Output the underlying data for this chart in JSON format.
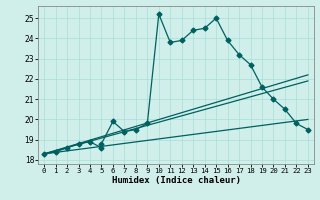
{
  "xlabel": "Humidex (Indice chaleur)",
  "xlim": [
    -0.5,
    23.5
  ],
  "ylim": [
    17.8,
    25.6
  ],
  "yticks": [
    18,
    19,
    20,
    21,
    22,
    23,
    24,
    25
  ],
  "xticks": [
    0,
    1,
    2,
    3,
    4,
    5,
    6,
    7,
    8,
    9,
    10,
    11,
    12,
    13,
    14,
    15,
    16,
    17,
    18,
    19,
    20,
    21,
    22,
    23
  ],
  "background_color": "#d0eeea",
  "grid_color": "#a8ddd6",
  "line_color": "#006060",
  "curve_x": [
    0,
    1,
    2,
    3,
    4,
    5,
    5,
    6,
    7,
    8,
    9,
    10,
    11,
    12,
    13,
    14,
    15,
    16,
    17,
    18,
    19,
    20,
    21,
    22,
    23
  ],
  "curve_y": [
    18.3,
    18.4,
    18.6,
    18.8,
    18.9,
    18.6,
    18.8,
    19.9,
    19.4,
    19.5,
    19.8,
    25.2,
    23.8,
    23.9,
    24.4,
    24.5,
    25.0,
    23.9,
    23.2,
    22.7,
    21.6,
    21.0,
    20.5,
    19.8,
    19.5
  ],
  "line1_x": [
    0,
    23
  ],
  "line1_y": [
    18.3,
    21.9
  ],
  "line2_x": [
    0,
    23
  ],
  "line2_y": [
    18.3,
    22.2
  ],
  "line3_x": [
    0,
    23
  ],
  "line3_y": [
    18.3,
    20.0
  ],
  "marker": "D",
  "marker_size": 2.5,
  "line_width": 0.9
}
